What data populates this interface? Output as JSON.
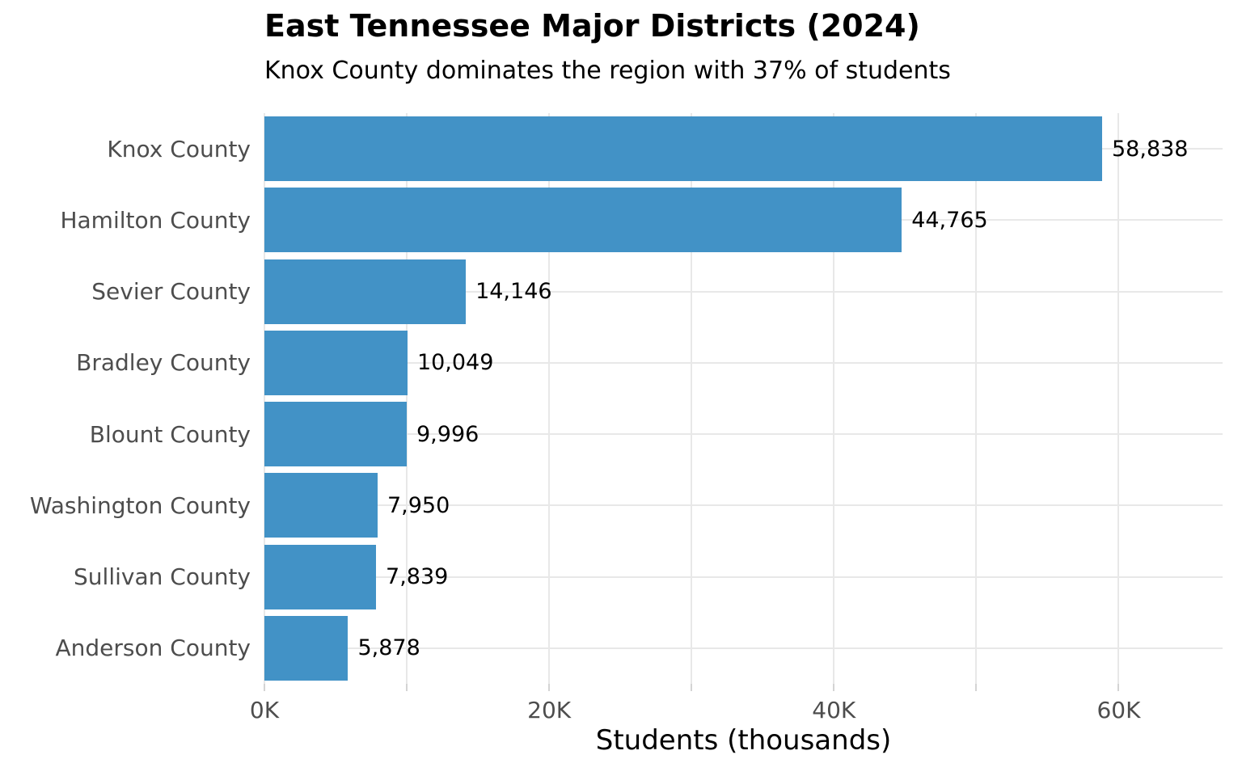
{
  "chart_data": {
    "type": "bar",
    "orientation": "horizontal",
    "title": "East Tennessee Major Districts (2024)",
    "subtitle": "Knox County dominates the region with 37% of students",
    "xlabel": "Students (thousands)",
    "categories": [
      "Knox County",
      "Hamilton County",
      "Sevier County",
      "Bradley County",
      "Blount County",
      "Washington County",
      "Sullivan County",
      "Anderson County"
    ],
    "values": [
      58838,
      44765,
      14146,
      10049,
      9996,
      7950,
      7839,
      5878
    ],
    "value_labels": [
      "58,838",
      "44,765",
      "14,146",
      "10,049",
      "9,996",
      "7,950",
      "7,839",
      "5,878"
    ],
    "xlim": [
      0,
      67300
    ],
    "x_tick_values": [
      0,
      10000,
      20000,
      30000,
      40000,
      50000,
      60000
    ],
    "x_tick_labels": [
      "0K",
      "",
      "20K",
      "",
      "40K",
      "",
      "60K"
    ],
    "grid": "vertical every 10K, horizontal at each category center",
    "legend": "none",
    "colors": {
      "bar": "#4292c6",
      "grid": "#e8e8e8",
      "tick_mark": "#d4d4d4",
      "axis_text": "#4d4d4d",
      "category_text": "#4d4d4d",
      "value_text": "#000000",
      "title_text": "#000000"
    }
  }
}
